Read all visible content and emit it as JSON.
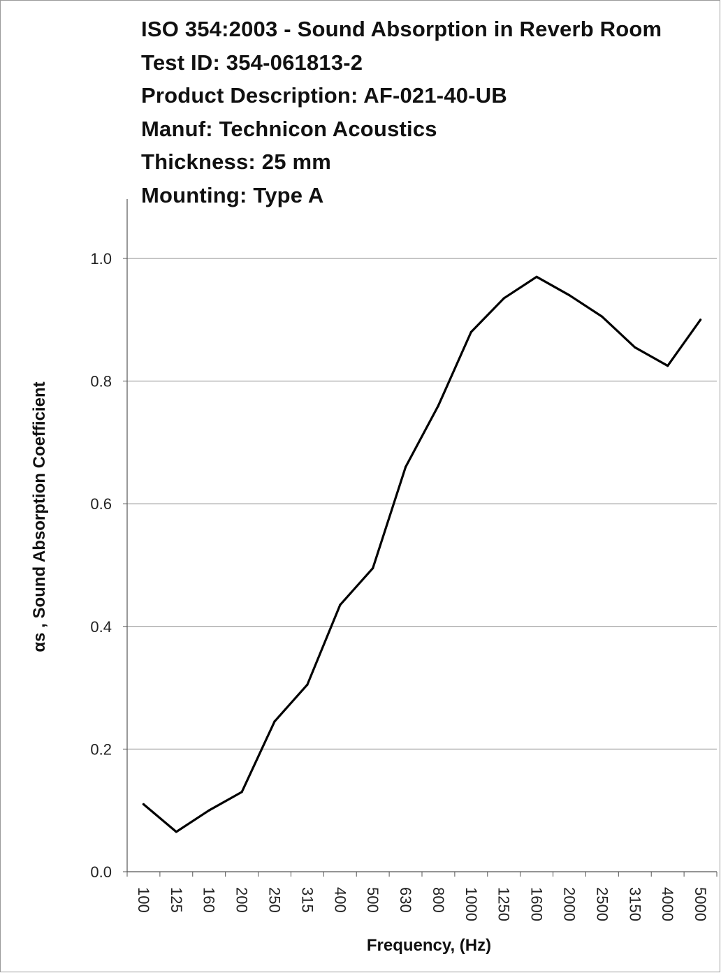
{
  "header": {
    "lines": [
      "ISO 354:2003 - Sound Absorption in Reverb  Room",
      "Test ID: 354-061813-2",
      "Product Description: AF-021-40-UB",
      "Manuf: Technicon Acoustics",
      "Thickness: 25 mm",
      "Mounting: Type A"
    ]
  },
  "chart_data": {
    "type": "line",
    "title": "ISO 354:2003 - Sound Absorption in Reverb  Room",
    "xlabel": "Frequency, (Hz)",
    "ylabel": "αs , Sound Absorption  Coefficient",
    "categories": [
      "100",
      "125",
      "160",
      "200",
      "250",
      "315",
      "400",
      "500",
      "630",
      "800",
      "1000",
      "1250",
      "1600",
      "2000",
      "2500",
      "3150",
      "4000",
      "5000"
    ],
    "y_tick_labels": [
      "0.0",
      "0.2",
      "0.4",
      "0.6",
      "0.8",
      "1.0"
    ],
    "ylim": [
      0.0,
      1.0
    ],
    "grid": "horizontal",
    "legend": "none",
    "series": [
      {
        "values": [
          0.11,
          0.065,
          0.1,
          0.13,
          0.245,
          0.305,
          0.435,
          0.495,
          0.66,
          0.76,
          0.88,
          0.935,
          0.97,
          0.94,
          0.905,
          0.855,
          0.825,
          0.9
        ],
        "color": "#000000"
      }
    ]
  }
}
